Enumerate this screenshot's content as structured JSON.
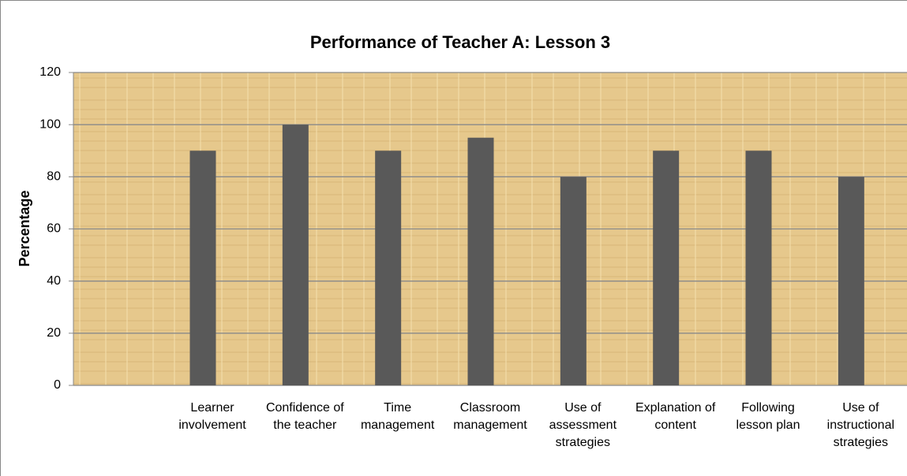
{
  "chart_data": {
    "type": "bar",
    "title": "Performance of Teacher A: Lesson 3",
    "ylabel": "Percentage",
    "categories": [
      null,
      "Learner involvement",
      "Confidence of the teacher",
      "Time management",
      "Classroom management",
      "Use of assessment strategies",
      "Explanation of content",
      "Following lesson plan",
      "Use of instructional strategies"
    ],
    "values": [
      null,
      90,
      100,
      90,
      95,
      80,
      90,
      90,
      80
    ],
    "color": "#595959",
    "ylim": [
      0,
      120
    ],
    "yticks": [
      0,
      20,
      40,
      60,
      80,
      100,
      120
    ],
    "grid": true
  }
}
